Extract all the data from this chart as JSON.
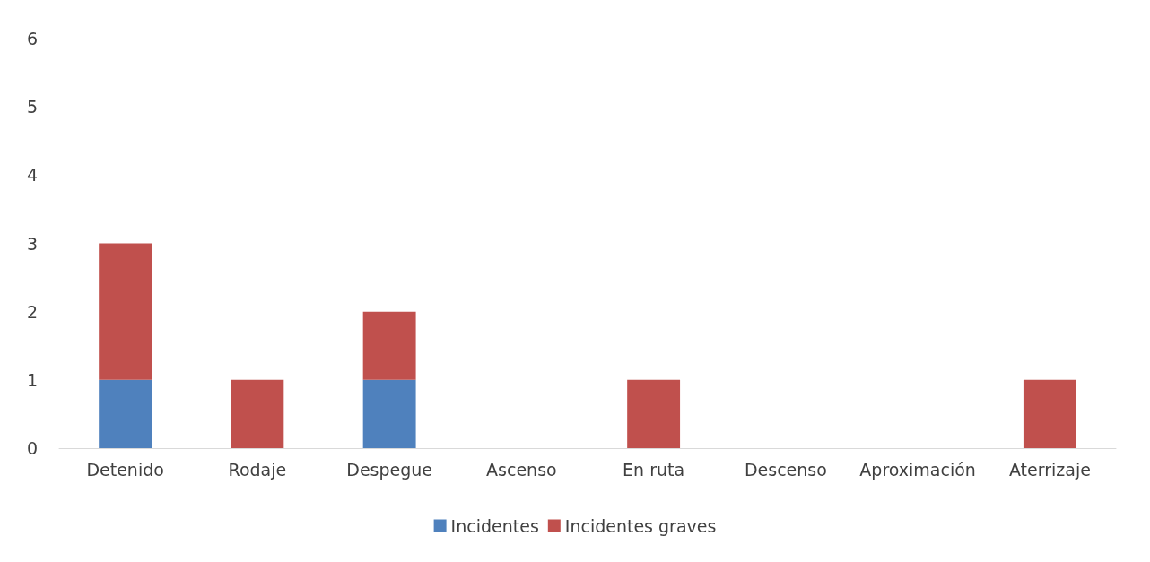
{
  "chart_data": {
    "type": "bar",
    "stacked": true,
    "categories": [
      "Detenido",
      "Rodaje",
      "Despegue",
      "Ascenso",
      "En ruta",
      "Descenso",
      "Aproximación",
      "Aterrizaje"
    ],
    "series": [
      {
        "name": "Incidentes",
        "color": "#4f81bd",
        "values": [
          1,
          0,
          1,
          0,
          0,
          0,
          0,
          0
        ]
      },
      {
        "name": "Incidentes graves",
        "color": "#c0504d",
        "values": [
          2,
          1,
          1,
          0,
          1,
          0,
          0,
          1
        ]
      }
    ],
    "ylim": [
      0,
      6
    ],
    "yticks": [
      0,
      1,
      2,
      3,
      4,
      5,
      6
    ],
    "grid": false,
    "legend": "bottom"
  }
}
